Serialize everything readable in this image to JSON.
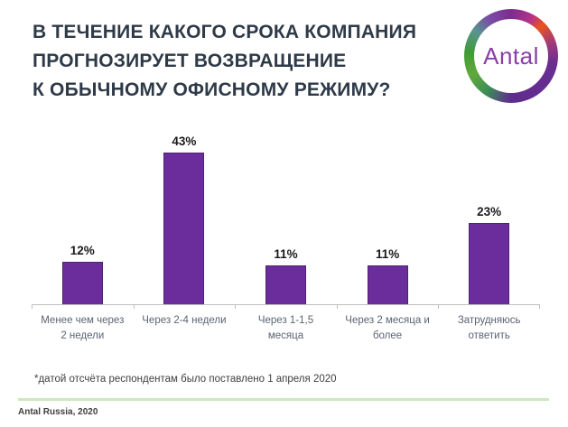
{
  "slide": {
    "title": "В ТЕЧЕНИЕ КАКОГО СРОКА КОМПАНИЯ\nПРОГНОЗИРУЕТ ВОЗВРАЩЕНИЕ\nК ОБЫЧНОМУ ОФИСНОМУ РЕЖИМУ?",
    "footnote": "*датой отсчёта респондентам было поставлено 1 апреля 2020",
    "footer": "Antal Russia, 2020",
    "logo_text": "Antal"
  },
  "colors": {
    "bar": "#6B2D9B",
    "bar_border": "#4F2173",
    "title": "#2E3A48",
    "axis": "#BFBFBF",
    "category_label": "#5A6472",
    "value_label": "#1A1A1A",
    "separator": "#CDE6C0",
    "logo_text": "#8A3FA8",
    "logo_orange": "#E8541D",
    "logo_green": "#3F9C35",
    "logo_purple": "#6A2D91"
  },
  "chart_data": {
    "type": "bar",
    "title": "В течение какого срока компания прогнозирует возвращение к обычному офисному режиму?",
    "categories": [
      "Менее чем через 2 недели",
      "Через 2-4 недели",
      "Через 1-1,5 месяца",
      "Через 2 месяца и более",
      "Затрудняюсь ответить"
    ],
    "values": [
      12,
      43,
      11,
      11,
      23
    ],
    "labels": [
      "12%",
      "43%",
      "11%",
      "11%",
      "23%"
    ],
    "xlabel": "",
    "ylabel": "",
    "ylim": [
      0,
      50
    ],
    "grid": false,
    "legend": false,
    "annotation": "*датой отсчёта респондентам было поставлено 1 апреля 2020"
  }
}
